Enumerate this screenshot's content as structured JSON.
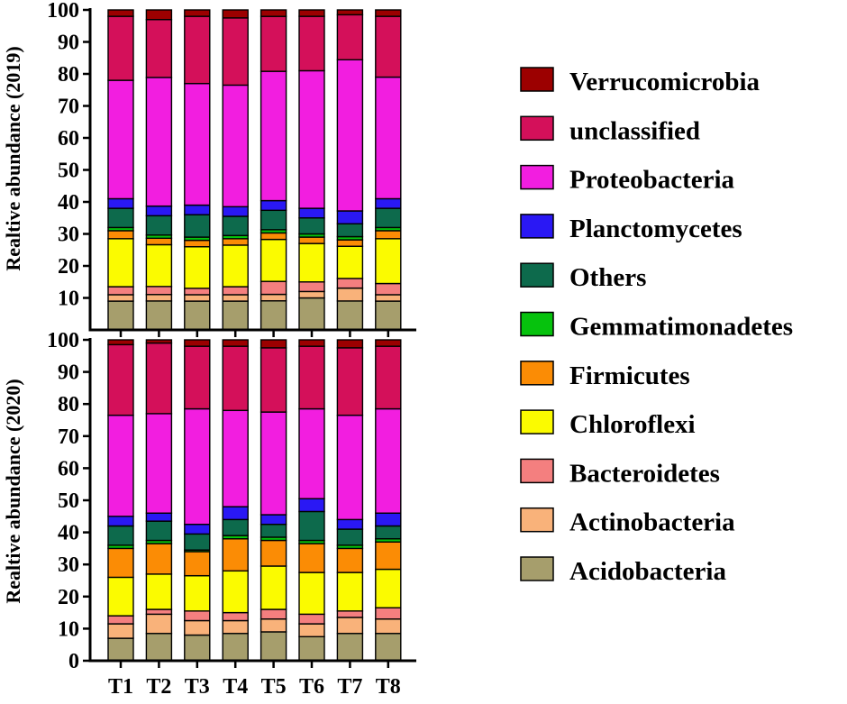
{
  "chart_data": [
    {
      "type": "bar",
      "stacked": true,
      "title": "",
      "xlabel": "",
      "ylabel": "Realtive abundance (2019)",
      "ylim": [
        0,
        100
      ],
      "yticks": [
        10,
        20,
        30,
        40,
        50,
        60,
        70,
        80,
        90,
        100
      ],
      "categories": [
        "T1",
        "T2",
        "T3",
        "T4",
        "T5",
        "T6",
        "T7",
        "T8"
      ],
      "series": [
        {
          "name": "Acidobacteria",
          "values": [
            9,
            9,
            9,
            9,
            9,
            10,
            9,
            9
          ]
        },
        {
          "name": "Actinobacteria",
          "values": [
            2,
            2,
            2,
            2,
            2,
            2,
            4,
            2
          ]
        },
        {
          "name": "Bacteroidetes",
          "values": [
            2.5,
            2.5,
            2,
            2.5,
            4,
            3,
            3,
            3.5
          ]
        },
        {
          "name": "Chloroflexi",
          "values": [
            15,
            13,
            13,
            13,
            13,
            12,
            10,
            14
          ]
        },
        {
          "name": "Firmicutes",
          "values": [
            2.5,
            2,
            2,
            2,
            2,
            2,
            2,
            2.5
          ]
        },
        {
          "name": "Gemmatimonadetes",
          "values": [
            1,
            1,
            1,
            1,
            1,
            1,
            1,
            1
          ]
        },
        {
          "name": "Others",
          "values": [
            6,
            6,
            7,
            6,
            6,
            5,
            4,
            6
          ]
        },
        {
          "name": "Planctomycetes",
          "values": [
            3,
            3,
            3,
            3,
            3,
            3,
            4,
            3
          ]
        },
        {
          "name": "Proteobacteria",
          "values": [
            37,
            40,
            38,
            38,
            40,
            43,
            47,
            38
          ]
        },
        {
          "name": "unclassified",
          "values": [
            20,
            18,
            21,
            21,
            17,
            17,
            14,
            19
          ]
        },
        {
          "name": "Verrucomicrobia",
          "values": [
            2,
            3,
            2,
            2.5,
            2,
            2,
            1.5,
            2
          ]
        }
      ]
    },
    {
      "type": "bar",
      "stacked": true,
      "title": "",
      "xlabel": "",
      "ylabel": "Realtive abundance (2020)",
      "ylim": [
        0,
        100
      ],
      "yticks": [
        0,
        10,
        20,
        30,
        40,
        50,
        60,
        70,
        80,
        90,
        100
      ],
      "categories": [
        "T1",
        "T2",
        "T3",
        "T4",
        "T5",
        "T6",
        "T7",
        "T8"
      ],
      "series": [
        {
          "name": "Acidobacteria",
          "values": [
            7,
            8.5,
            8,
            8.5,
            9,
            7.5,
            8.5,
            8.5
          ]
        },
        {
          "name": "Actinobacteria",
          "values": [
            4.5,
            6,
            4.5,
            4,
            4,
            4,
            5,
            4.5
          ]
        },
        {
          "name": "Bacteroidetes",
          "values": [
            2.5,
            1.5,
            3,
            2.5,
            3,
            3,
            2,
            3.5
          ]
        },
        {
          "name": "Chloroflexi",
          "values": [
            12,
            11,
            11,
            13,
            13.5,
            13,
            12,
            12
          ]
        },
        {
          "name": "Firmicutes",
          "values": [
            9,
            9.5,
            7.5,
            10,
            8,
            9,
            7.5,
            8.5
          ]
        },
        {
          "name": "Gemmatimonadetes",
          "values": [
            1,
            1,
            0.5,
            1,
            1,
            1,
            1,
            1
          ]
        },
        {
          "name": "Others",
          "values": [
            6,
            6,
            5,
            5,
            4,
            9,
            5,
            4
          ]
        },
        {
          "name": "Planctomycetes",
          "values": [
            3,
            2.5,
            3,
            4,
            3,
            4,
            3,
            4
          ]
        },
        {
          "name": "Proteobacteria",
          "values": [
            31.5,
            31,
            36,
            30,
            32,
            28,
            32.5,
            32.5
          ]
        },
        {
          "name": "unclassified",
          "values": [
            22,
            22,
            19.5,
            20,
            20,
            19.5,
            21,
            19.5
          ]
        },
        {
          "name": "Verrucomicrobia",
          "values": [
            1.5,
            1,
            2,
            2,
            2.5,
            2,
            2.5,
            2
          ]
        }
      ]
    }
  ],
  "legend": {
    "order": [
      "Verrucomicrobia",
      "unclassified",
      "Proteobacteria",
      "Planctomycetes",
      "Others",
      "Gemmatimonadetes",
      "Firmicutes",
      "Chloroflexi",
      "Bacteroidetes",
      "Actinobacteria",
      "Acidobacteria"
    ],
    "placement": "right"
  },
  "colors": {
    "Acidobacteria": "#a69e6c",
    "Actinobacteria": "#f9b27a",
    "Bacteroidetes": "#f47f7f",
    "Chloroflexi": "#fbfb00",
    "Firmicutes": "#fb8c05",
    "Gemmatimonadetes": "#06c20d",
    "Others": "#0d6a4c",
    "Planctomycetes": "#2a18f4",
    "Proteobacteria": "#f21ee0",
    "unclassified": "#d4105a",
    "Verrucomicrobia": "#9c0000",
    "axis": "#000000"
  }
}
